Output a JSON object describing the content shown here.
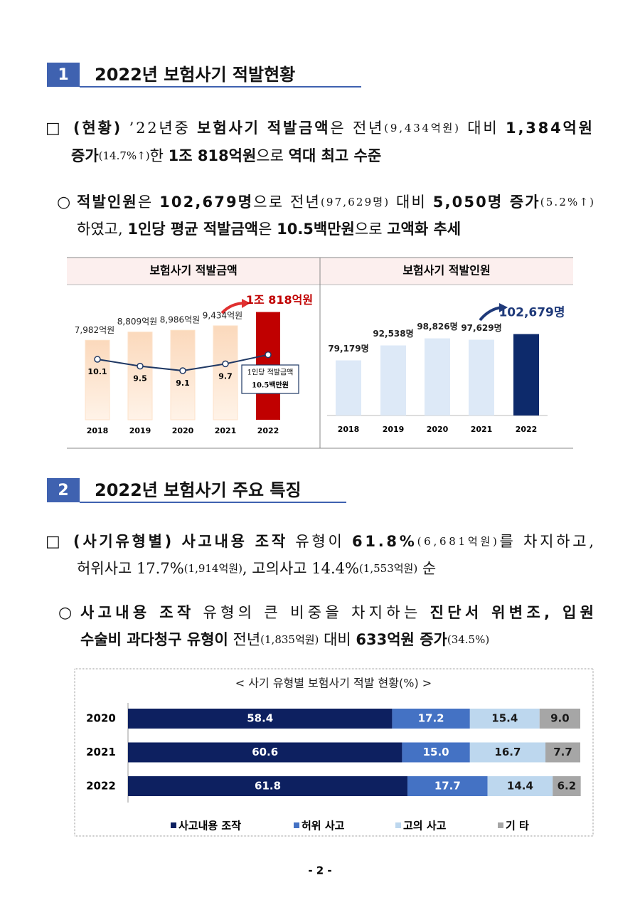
{
  "doc": {
    "sections": [
      {
        "number": "1",
        "title": "2022년 보험사기 적발현황"
      },
      {
        "number": "2",
        "title": "2022년 보험사기 주요 특징"
      }
    ],
    "paragraphs": [
      {
        "marker": "□",
        "lines": [
          [
            {
              "text": "(현황)",
              "style": "bold"
            },
            {
              "text": " ’22년중 ",
              "style": "normal"
            },
            {
              "text": "보험사기 적발금액",
              "style": "bold"
            },
            {
              "text": "은 전년",
              "style": "normal"
            },
            {
              "text": "(9,434억원)",
              "style": "small"
            },
            {
              "text": " 대비 ",
              "style": "normal"
            },
            {
              "text": "1,384억원",
              "style": "bold"
            }
          ],
          [
            {
              "text": "증가",
              "style": "bold"
            },
            {
              "text": "(14.7%↑)",
              "style": "small"
            },
            {
              "text": "한 ",
              "style": "normal"
            },
            {
              "text": "1조 818억원",
              "style": "bold"
            },
            {
              "text": "으로 ",
              "style": "normal"
            },
            {
              "text": "역대 최고 수준",
              "style": "bold"
            }
          ]
        ]
      },
      {
        "marker": "○",
        "lines": [
          [
            {
              "text": "적발인원",
              "style": "bold"
            },
            {
              "text": "은 ",
              "style": "normal"
            },
            {
              "text": "102,679명",
              "style": "bold"
            },
            {
              "text": "으로 전년",
              "style": "normal"
            },
            {
              "text": "(97,629명)",
              "style": "small"
            },
            {
              "text": " 대비 ",
              "style": "normal"
            },
            {
              "text": "5,050명 증가",
              "style": "bold"
            },
            {
              "text": "(5.2%↑)",
              "style": "small"
            }
          ],
          [
            {
              "text": "하였고, ",
              "style": "normal"
            },
            {
              "text": "1인당 평균 적발금액",
              "style": "bold"
            },
            {
              "text": "은 ",
              "style": "normal"
            },
            {
              "text": "10.5백만원",
              "style": "bold"
            },
            {
              "text": "으로 ",
              "style": "normal"
            },
            {
              "text": "고액화 추세",
              "style": "bold"
            }
          ]
        ]
      },
      {
        "marker": "□",
        "lines": [
          [
            {
              "text": "(사기유형별)",
              "style": "bold"
            },
            {
              "text": " ",
              "style": "normal"
            },
            {
              "text": "사고내용 조작",
              "style": "bold"
            },
            {
              "text": " 유형이 ",
              "style": "normal"
            },
            {
              "text": "61.8%",
              "style": "bold"
            },
            {
              "text": "(6,681억원)",
              "style": "small"
            },
            {
              "text": "를 차지하고,",
              "style": "normal"
            }
          ],
          [
            {
              "text": "허위사고 17.7%",
              "style": "normal"
            },
            {
              "text": "(1,914억원)",
              "style": "small"
            },
            {
              "text": ", 고의사고 14.4%",
              "style": "normal"
            },
            {
              "text": "(1,553억원)",
              "style": "small"
            },
            {
              "text": " 순",
              "style": "normal"
            }
          ]
        ]
      },
      {
        "marker": "○",
        "lines": [
          [
            {
              "text": "사고내용 조작",
              "style": "bold"
            },
            {
              "text": " 유형의 큰 비중을 차지하는 ",
              "style": "normal"
            },
            {
              "text": "진단서 위변조, 입원",
              "style": "bold"
            }
          ],
          [
            {
              "text": "수술비 과다청구 유형이",
              "style": "bold"
            },
            {
              "text": " 전년",
              "style": "normal"
            },
            {
              "text": "(1,835억원)",
              "style": "small"
            },
            {
              "text": " 대비 ",
              "style": "normal"
            },
            {
              "text": "633억원 증가",
              "style": "bold"
            },
            {
              "text": "(34.5%)",
              "style": "small"
            }
          ]
        ]
      }
    ],
    "page_number": "- 2 -"
  },
  "chart_data": [
    {
      "type": "combo",
      "title": "보험사기 적발금액",
      "categories": [
        "2018",
        "2019",
        "2020",
        "2021",
        "2022"
      ],
      "values": [
        7982,
        8809,
        8986,
        9434,
        10818
      ],
      "value_labels": [
        "7,982억원",
        "8,809억원",
        "8,986억원",
        "9,434억원",
        "1조 818억원"
      ],
      "colors": [
        "#fde2c9",
        "#fde2c9",
        "#fde2c9",
        "#fde2c9",
        "#c00000"
      ],
      "ylim": [
        0,
        11000
      ],
      "line": {
        "values": [
          10.1,
          9.5,
          9.1,
          9.7,
          10.5
        ],
        "value_labels": [
          "10.1",
          "9.5",
          "9.1",
          "9.7",
          "10.5백만원"
        ],
        "axis": "y2",
        "color": "#1f3864"
      },
      "y2lim": [
        4.8,
        14.4
      ],
      "annotation": "1인당 적발금액"
    },
    {
      "type": "bar",
      "title": "보험사기 적발인원",
      "categories": [
        "2018",
        "2019",
        "2020",
        "2021",
        "2022"
      ],
      "values": [
        79179,
        92538,
        98826,
        97629,
        102679
      ],
      "value_labels": [
        "79,179명",
        "92,538명",
        "98,826명",
        "97,629명",
        "102,679명"
      ],
      "colors": [
        "#dde9f7",
        "#dde9f7",
        "#dde9f7",
        "#dde9f7",
        "#0d2a6b"
      ],
      "ylim": [
        30000,
        110000
      ]
    },
    {
      "type": "stacked-bar",
      "orientation": "horizontal",
      "title": "< 사기 유형별 보험사기 적발 현황(%) >",
      "categories": [
        "2020",
        "2021",
        "2022"
      ],
      "series": [
        {
          "name": "사고내용 조작",
          "color": "#0d2060",
          "values": [
            58.4,
            60.6,
            61.8
          ]
        },
        {
          "name": "허위 사고",
          "color": "#4472c4",
          "values": [
            17.2,
            15.0,
            17.7
          ],
          "value_labels": [
            "17.2",
            "15.0",
            "17.7"
          ]
        },
        {
          "name": "고의 사고",
          "color": "#bdd7ee",
          "values": [
            15.4,
            16.7,
            14.4
          ]
        },
        {
          "name": "기 타",
          "color": "#a6a6a6",
          "values": [
            9.0,
            7.7,
            6.2
          ],
          "value_labels": [
            "9.0",
            "7.7",
            "6.2"
          ]
        }
      ],
      "xlim": [
        0,
        100
      ],
      "legend": "bottom"
    }
  ]
}
